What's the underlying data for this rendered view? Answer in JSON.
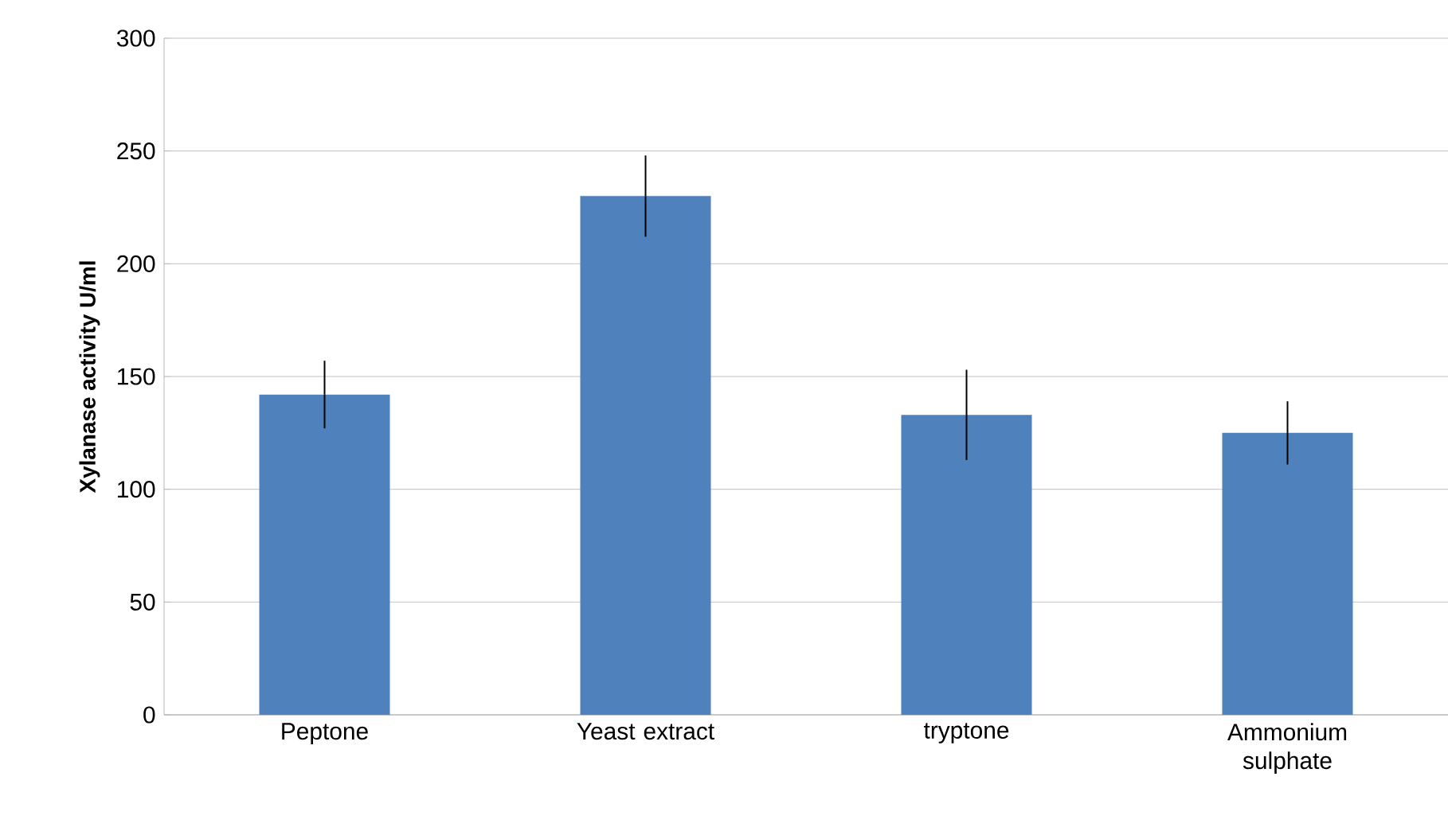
{
  "chart_data": {
    "type": "bar",
    "ylabel": "Xylanase activity U/ml",
    "categories": [
      "Peptone",
      "Yeast extract",
      "tryptone",
      "Ammonium sulphate"
    ],
    "values": [
      142,
      230,
      133,
      125
    ],
    "errors": [
      15,
      18,
      20,
      14
    ],
    "color": "#4f81bd",
    "ylim": [
      0,
      300
    ],
    "yticks": [
      0,
      50,
      100,
      150,
      200,
      250,
      300
    ],
    "grid": "y"
  }
}
